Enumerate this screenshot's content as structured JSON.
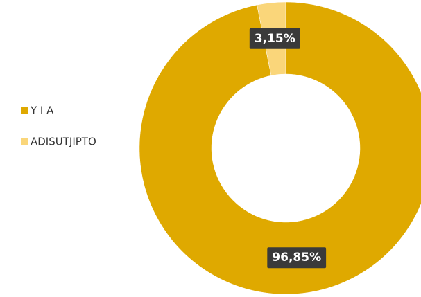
{
  "chart_data": {
    "type": "donut",
    "categories": [
      "Y I A",
      "ADISUTJIPTO"
    ],
    "values": [
      96.85,
      3.15
    ],
    "value_labels": [
      "96,85%",
      "3,15%"
    ],
    "colors": [
      "#dfa900",
      "#fad67a"
    ],
    "legend": "left"
  }
}
